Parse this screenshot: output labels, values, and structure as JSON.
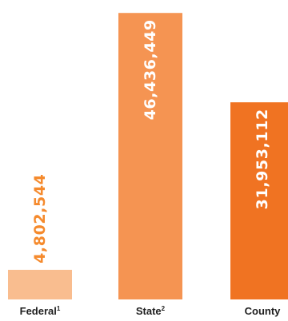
{
  "chart_data": {
    "type": "bar",
    "categories": [
      "Federal",
      "State",
      "County"
    ],
    "category_superscripts": [
      "1",
      "2",
      ""
    ],
    "values": [
      4802544,
      46436449,
      31953112
    ],
    "value_labels": [
      "4,802,544",
      "46,436,449",
      "31,953,112"
    ],
    "bar_colors": [
      "#f9bd8f",
      "#f59452",
      "#f07322"
    ],
    "label_colors": [
      "#f58a2d",
      "#ffffff",
      "#ffffff"
    ],
    "ylim": [
      0,
      47500000
    ],
    "title": "",
    "xlabel": "",
    "ylabel": "",
    "grid": false,
    "legend": false
  }
}
